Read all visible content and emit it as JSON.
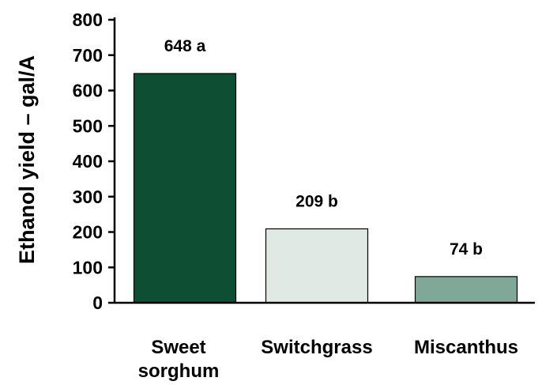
{
  "chart_data": {
    "type": "bar",
    "title": "",
    "xlabel": "",
    "ylabel": "Ethanol yield – gal/A",
    "ylim": [
      0,
      800
    ],
    "yticks": [
      0,
      100,
      200,
      300,
      400,
      500,
      600,
      700,
      800
    ],
    "grid": false,
    "categories": [
      {
        "lines": [
          "Sweet",
          "sorghum"
        ]
      },
      {
        "lines": [
          "Switchgrass"
        ]
      },
      {
        "lines": [
          "Miscanthus"
        ]
      }
    ],
    "values": [
      648,
      209,
      74
    ],
    "data_labels": [
      "648 a",
      "209 b",
      "74 b"
    ],
    "bar_colors": [
      "#0e4f33",
      "#e1e9e4",
      "#7fa899"
    ],
    "bar_outline": "#000000"
  }
}
